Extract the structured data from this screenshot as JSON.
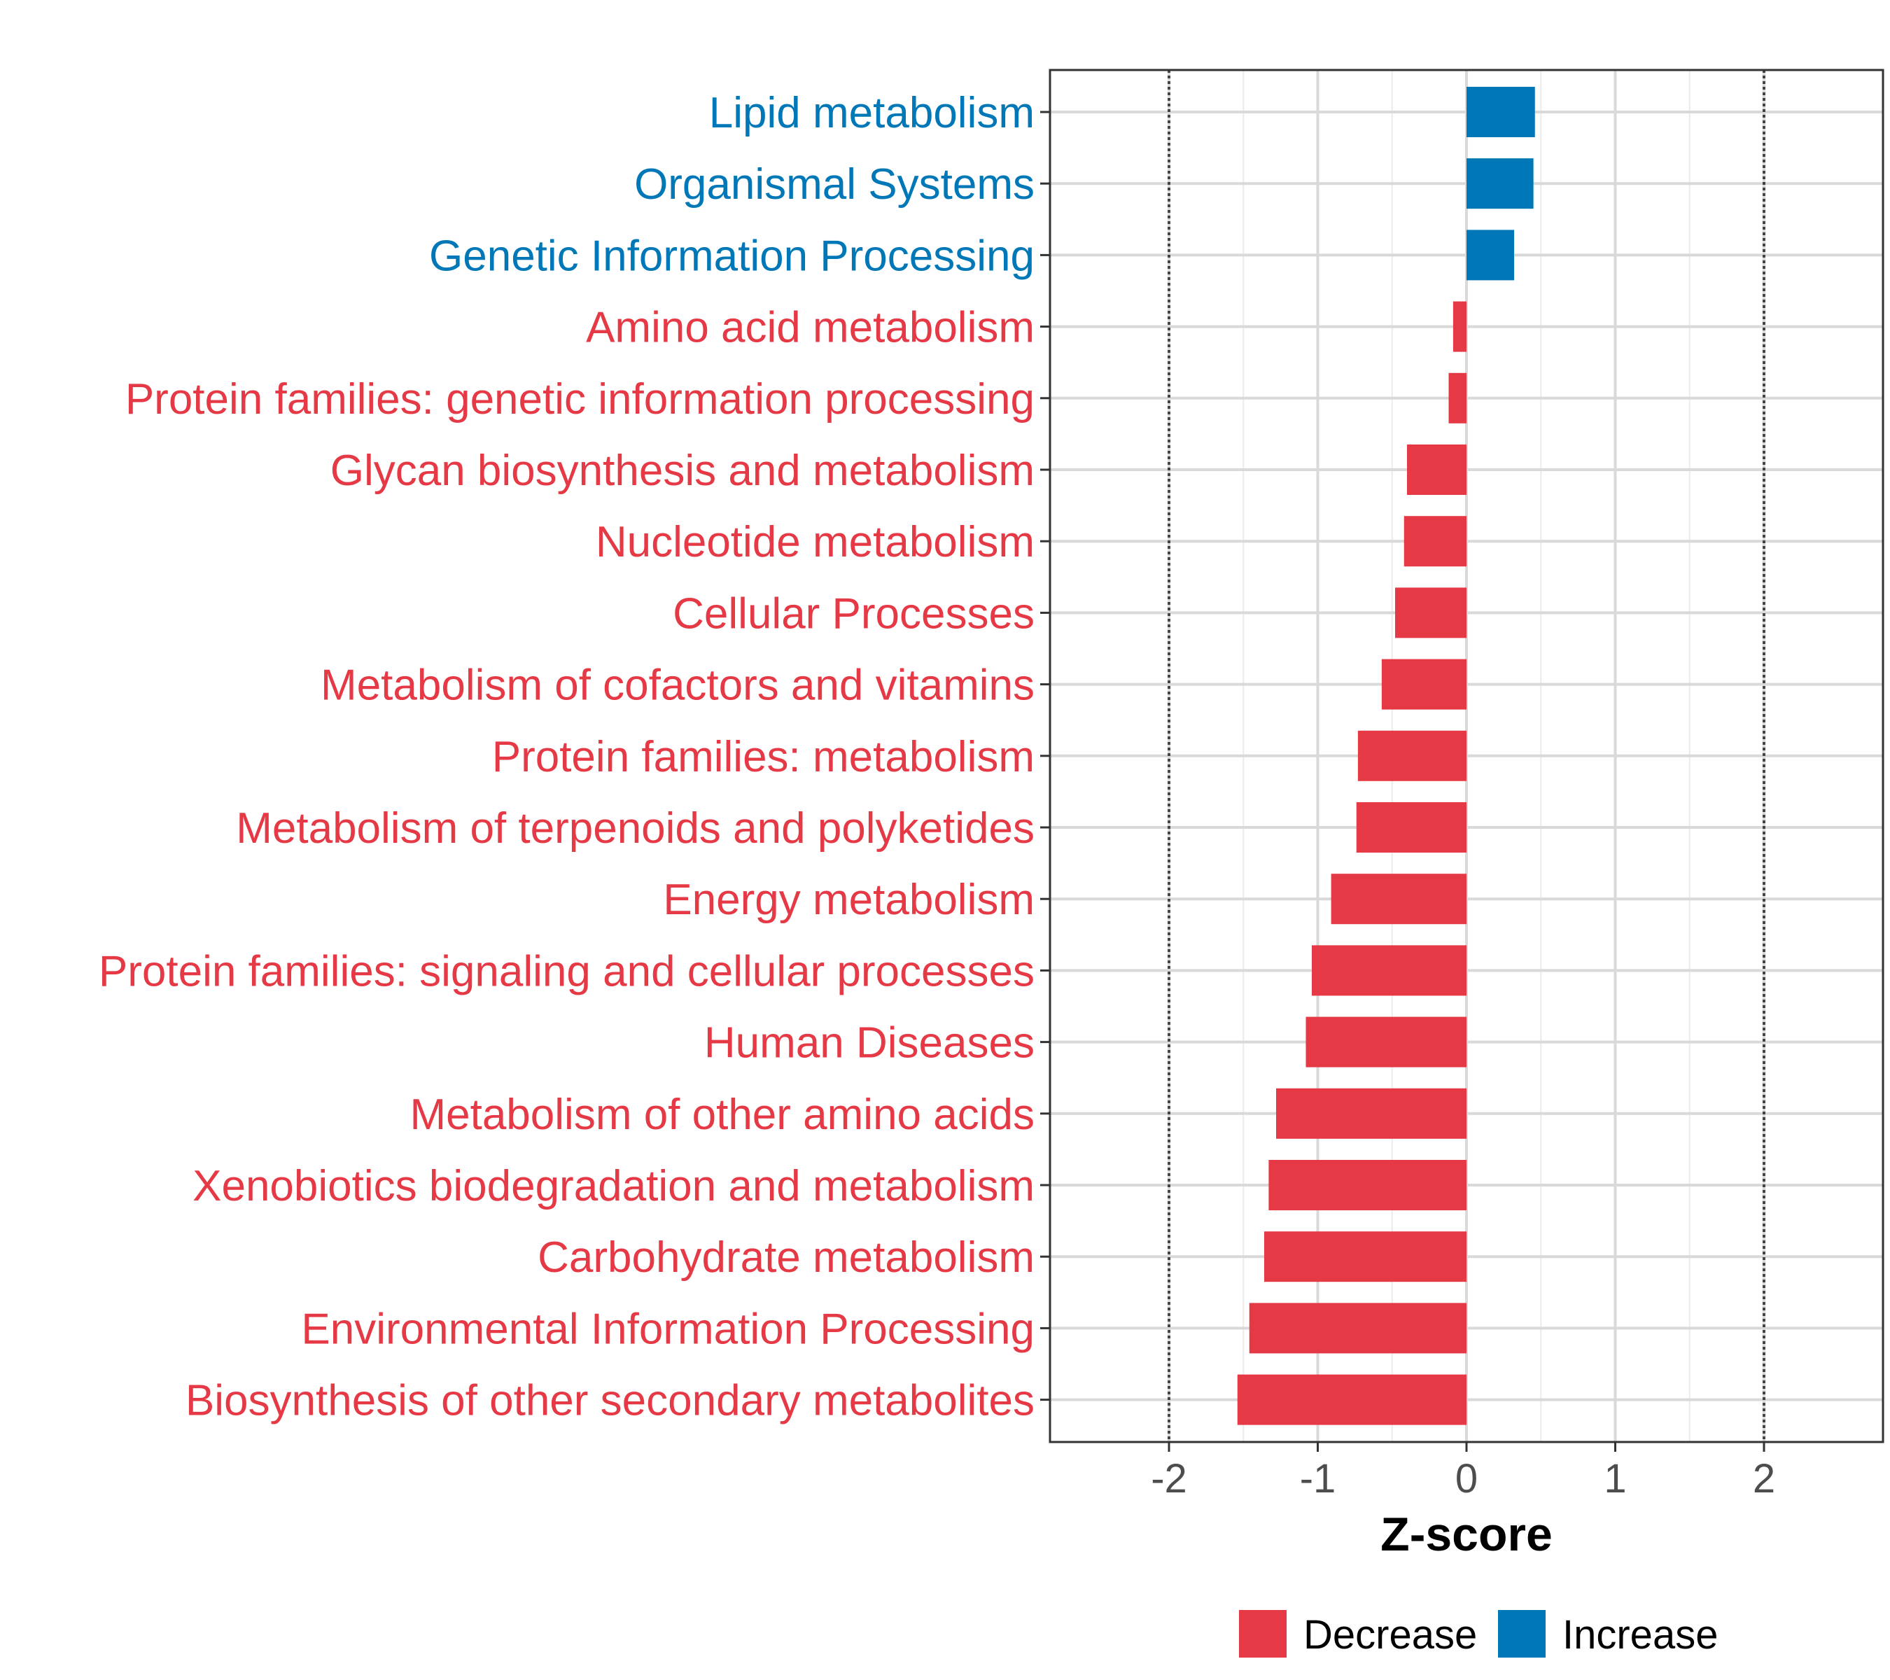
{
  "chart_data": {
    "type": "bar",
    "orientation": "horizontal",
    "xlabel": "Z-score",
    "ylabel": "",
    "xlim": [
      -2.8,
      2.8
    ],
    "xticks": [
      -2,
      -1,
      0,
      1,
      2
    ],
    "xtick_labels": [
      "-2",
      "-1",
      "0",
      "1",
      "2"
    ],
    "reference_lines": [
      -2,
      2
    ],
    "grid": true,
    "legend_position": "bottom",
    "colors": {
      "Decrease": "#e63946",
      "Increase": "#0077b6"
    },
    "legend": [
      {
        "label": "Decrease",
        "color": "#e63946"
      },
      {
        "label": "Increase",
        "color": "#0077b6"
      }
    ],
    "categories": [
      "Lipid metabolism",
      "Organismal Systems",
      "Genetic Information Processing",
      "Amino acid metabolism",
      "Protein families: genetic information processing",
      "Glycan biosynthesis and metabolism",
      "Nucleotide metabolism",
      "Cellular Processes",
      "Metabolism of cofactors and vitamins",
      "Protein families: metabolism",
      "Metabolism of terpenoids and polyketides",
      "Energy metabolism",
      "Protein families: signaling and cellular processes",
      "Human Diseases",
      "Metabolism of other amino acids",
      "Xenobiotics biodegradation and metabolism",
      "Carbohydrate metabolism",
      "Environmental Information Processing",
      "Biosynthesis of other secondary metabolites"
    ],
    "values": [
      0.46,
      0.45,
      0.32,
      -0.09,
      -0.12,
      -0.4,
      -0.42,
      -0.48,
      -0.57,
      -0.73,
      -0.74,
      -0.91,
      -1.04,
      -1.08,
      -1.28,
      -1.33,
      -1.36,
      -1.46,
      -1.54
    ],
    "groups": [
      "Increase",
      "Increase",
      "Increase",
      "Decrease",
      "Decrease",
      "Decrease",
      "Decrease",
      "Decrease",
      "Decrease",
      "Decrease",
      "Decrease",
      "Decrease",
      "Decrease",
      "Decrease",
      "Decrease",
      "Decrease",
      "Decrease",
      "Decrease",
      "Decrease"
    ]
  }
}
